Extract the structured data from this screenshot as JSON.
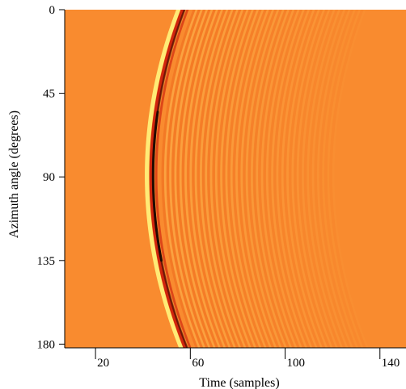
{
  "chart_data": {
    "type": "heatmap",
    "title": "",
    "xlabel": "Time (samples)",
    "ylabel": "Azimuth angle (degrees)",
    "x_ticks": [
      20,
      60,
      100,
      140
    ],
    "y_ticks": [
      0,
      45,
      90,
      135,
      180
    ],
    "xlim": [
      7,
      151
    ],
    "ylim": [
      0,
      182
    ],
    "y_inverted": true,
    "grid": false,
    "legend": "none",
    "colormap": "red-orange-yellow",
    "background_value_color": "#f98b2f",
    "wavefront": {
      "description_free_values": true,
      "arrival_time_at_0_deg": 56,
      "arrival_time_at_90_deg": 43,
      "arrival_time_at_180_deg": 57,
      "shape": "curved arrival front, earliest near 100 degrees"
    }
  },
  "colors": {
    "background": "#f98b2f",
    "ridge_dark": "#220a00",
    "ridge_red": "#cc1a0a",
    "ridge_yellow": "#fff07a",
    "stripe_light": "#fdbb52",
    "stripe_dark": "#ef6b1d"
  }
}
